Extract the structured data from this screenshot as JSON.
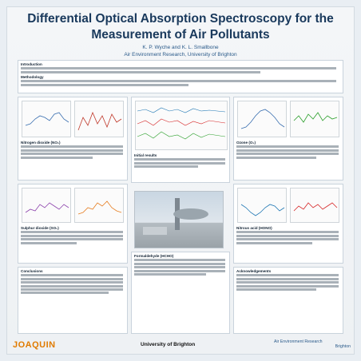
{
  "poster": {
    "title_line1": "Differential Optical Absorption Spectroscopy for the",
    "title_line2": "Measurement of Air Pollutants",
    "authors": "K. P. Wyche and K. L. Smallbone",
    "affiliation": "Air Environment Research, University of Brighton"
  },
  "sections": {
    "introduction": "Introduction",
    "methodology": "Methodology",
    "initial_results": "Initial results",
    "no2": "Nitrogen dioxide (NO₂)",
    "o3": "Ozone (O₃)",
    "so2": "Sulphur dioxide (SO₂)",
    "hono": "Nitrous acid (HONO)",
    "hcho": "Formaldehyde (HCHO)",
    "conclusions": "Conclusions",
    "acknowledgements": "Acknowledgements"
  },
  "logos": {
    "joaquin": "JOAQUIN",
    "brighton": "University of Brighton",
    "aer": "Air Environment Research",
    "aer_sub": "Brighton"
  },
  "colors": {
    "title": "#19395c",
    "accent": "#2a5a8a"
  }
}
